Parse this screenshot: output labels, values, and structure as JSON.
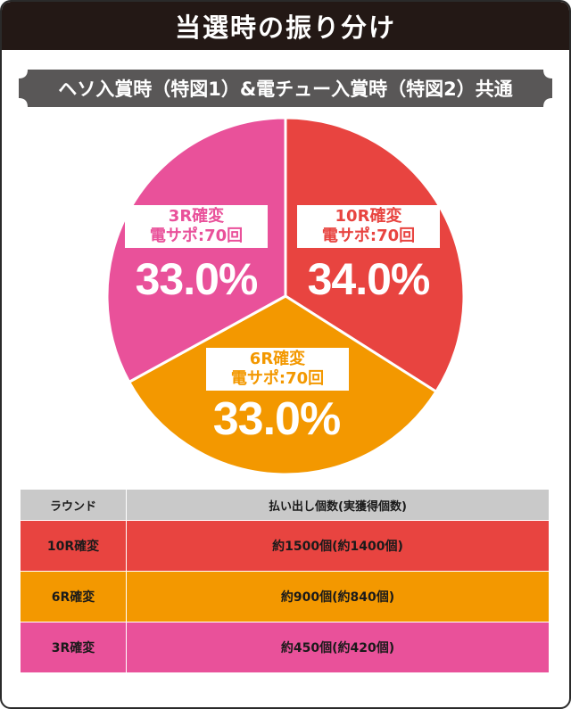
{
  "title": "当選時の振り分け",
  "subtitle": "ヘソ入賞時（特図1）&電チュー入賞時（特図2）共通",
  "colors": {
    "red": "#e84440",
    "orange": "#f39800",
    "pink": "#e9519a",
    "dark": "#231815",
    "gray_banner": "#595757",
    "table_header": "#c9c9c9"
  },
  "chart_data": {
    "type": "pie",
    "slices": [
      {
        "name": "10R確変",
        "sub": "電サポ:70回",
        "value": 34.0,
        "label": "34.0%",
        "color": "#e84440"
      },
      {
        "name": "6R確変",
        "sub": "電サポ:70回",
        "value": 33.0,
        "label": "33.0%",
        "color": "#f39800"
      },
      {
        "name": "3R確変",
        "sub": "電サポ:70回",
        "value": 33.0,
        "label": "33.0%",
        "color": "#e9519a"
      }
    ]
  },
  "table": {
    "headers": [
      "ラウンド",
      "払い出し個数(実獲得個数)"
    ],
    "rows": [
      {
        "round": "10R確変",
        "payout": "約1500個(約1400個)",
        "color": "#e84440"
      },
      {
        "round": "6R確変",
        "payout": "約900個(約840個)",
        "color": "#f39800"
      },
      {
        "round": "3R確変",
        "payout": "約450個(約420個)",
        "color": "#e9519a"
      }
    ]
  }
}
